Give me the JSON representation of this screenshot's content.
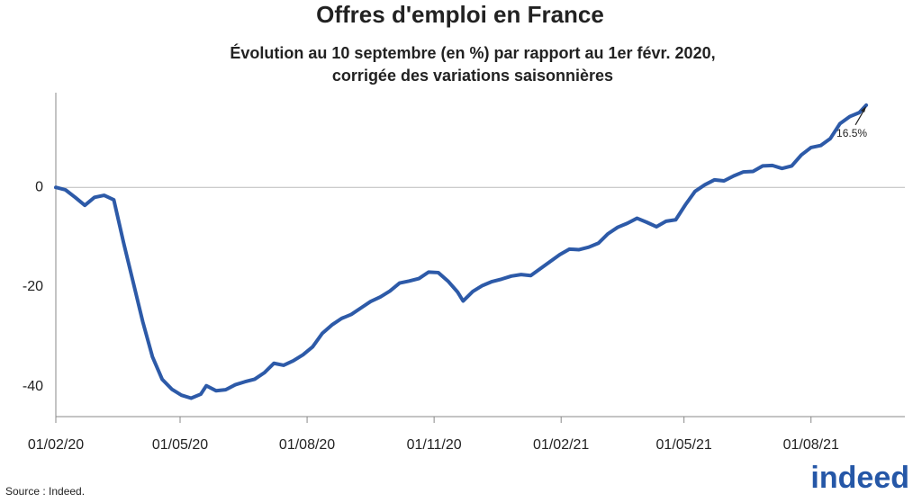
{
  "chart_data": {
    "type": "line",
    "title": "Offres d'emploi en France",
    "subtitle": [
      "Évolution au 10 septembre (en %) par rapport au 1er févr. 2020,",
      "corrigée des variations saisonnières"
    ],
    "x": [
      "2020-02-01",
      "2020-02-08",
      "2020-02-15",
      "2020-02-22",
      "2020-02-29",
      "2020-03-07",
      "2020-03-14",
      "2020-03-21",
      "2020-03-28",
      "2020-04-04",
      "2020-04-11",
      "2020-04-18",
      "2020-04-25",
      "2020-05-02",
      "2020-05-09",
      "2020-05-16",
      "2020-05-20",
      "2020-05-27",
      "2020-06-03",
      "2020-06-10",
      "2020-06-17",
      "2020-06-24",
      "2020-07-01",
      "2020-07-08",
      "2020-07-15",
      "2020-07-22",
      "2020-07-29",
      "2020-08-05",
      "2020-08-12",
      "2020-08-19",
      "2020-08-26",
      "2020-09-02",
      "2020-09-09",
      "2020-09-16",
      "2020-09-23",
      "2020-09-30",
      "2020-10-07",
      "2020-10-14",
      "2020-10-21",
      "2020-10-28",
      "2020-11-04",
      "2020-11-11",
      "2020-11-18",
      "2020-11-22",
      "2020-11-29",
      "2020-12-06",
      "2020-12-13",
      "2020-12-20",
      "2020-12-27",
      "2021-01-03",
      "2021-01-10",
      "2021-01-17",
      "2021-01-24",
      "2021-01-31",
      "2021-02-07",
      "2021-02-14",
      "2021-02-21",
      "2021-02-28",
      "2021-03-07",
      "2021-03-14",
      "2021-03-21",
      "2021-03-28",
      "2021-04-04",
      "2021-04-11",
      "2021-04-18",
      "2021-04-25",
      "2021-05-02",
      "2021-05-09",
      "2021-05-16",
      "2021-05-23",
      "2021-05-30",
      "2021-06-06",
      "2021-06-13",
      "2021-06-20",
      "2021-06-27",
      "2021-07-04",
      "2021-07-11",
      "2021-07-18",
      "2021-07-25",
      "2021-08-01",
      "2021-08-08",
      "2021-08-15",
      "2021-08-22",
      "2021-08-29",
      "2021-09-05",
      "2021-09-10"
    ],
    "values": [
      0,
      -0.5,
      -2,
      -3.6,
      -2,
      -1.6,
      -2.5,
      -11,
      -19,
      -27,
      -34,
      -38.5,
      -40.5,
      -41.7,
      -42.3,
      -41.5,
      -39.8,
      -40.8,
      -40.6,
      -39.6,
      -39,
      -38.5,
      -37.2,
      -35.3,
      -35.7,
      -34.8,
      -33.6,
      -32,
      -29.3,
      -27.6,
      -26.3,
      -25.5,
      -24.2,
      -22.9,
      -22,
      -20.8,
      -19.2,
      -18.8,
      -18.3,
      -17,
      -17.1,
      -18.8,
      -21,
      -22.8,
      -20.9,
      -19.7,
      -18.9,
      -18.4,
      -17.8,
      -17.5,
      -17.7,
      -16.3,
      -14.9,
      -13.5,
      -12.4,
      -12.5,
      -12,
      -11.2,
      -9.3,
      -8,
      -7.2,
      -6.2,
      -7,
      -7.9,
      -6.8,
      -6.5,
      -3.5,
      -0.8,
      0.5,
      1.5,
      1.3,
      2.3,
      3.1,
      3.2,
      4.3,
      4.4,
      3.8,
      4.3,
      6.5,
      8,
      8.4,
      9.8,
      12.8,
      14.2,
      15,
      16.5
    ],
    "value_labels": [
      null,
      null,
      null,
      null,
      null,
      null,
      null,
      null,
      null,
      null,
      null,
      null,
      null,
      null,
      null,
      null,
      null,
      null,
      null,
      null,
      null,
      null,
      null,
      null,
      null,
      null,
      null,
      null,
      null,
      null,
      null,
      null,
      null,
      null,
      null,
      null,
      null,
      null,
      null,
      null,
      null,
      null,
      null,
      null,
      null,
      null,
      null,
      null,
      null,
      null,
      null,
      null,
      null,
      null,
      null,
      null,
      null,
      null,
      null,
      null,
      null,
      null,
      null,
      null,
      null,
      null,
      null,
      null,
      null,
      null,
      null,
      null,
      null,
      null,
      null,
      null,
      null,
      null,
      null,
      null,
      null,
      null,
      null,
      null,
      null,
      "16.5%"
    ],
    "color": "#2d5aa8",
    "xlim": [
      "2020-02-01",
      "2021-10-08"
    ],
    "xticks": [
      {
        "value": "2020-02-01",
        "label": "01/02/20"
      },
      {
        "value": "2020-05-01",
        "label": "01/05/20"
      },
      {
        "value": "2020-08-01",
        "label": "01/08/20"
      },
      {
        "value": "2020-11-01",
        "label": "01/11/20"
      },
      {
        "value": "2021-02-01",
        "label": "01/02/21"
      },
      {
        "value": "2021-05-01",
        "label": "01/05/21"
      },
      {
        "value": "2021-08-01",
        "label": "01/08/21"
      }
    ],
    "ylim": [
      -46,
      19
    ],
    "yticks": [
      0,
      -20,
      -40
    ],
    "zero_line": true,
    "source": "Source : Indeed.",
    "logo": "indeed"
  }
}
